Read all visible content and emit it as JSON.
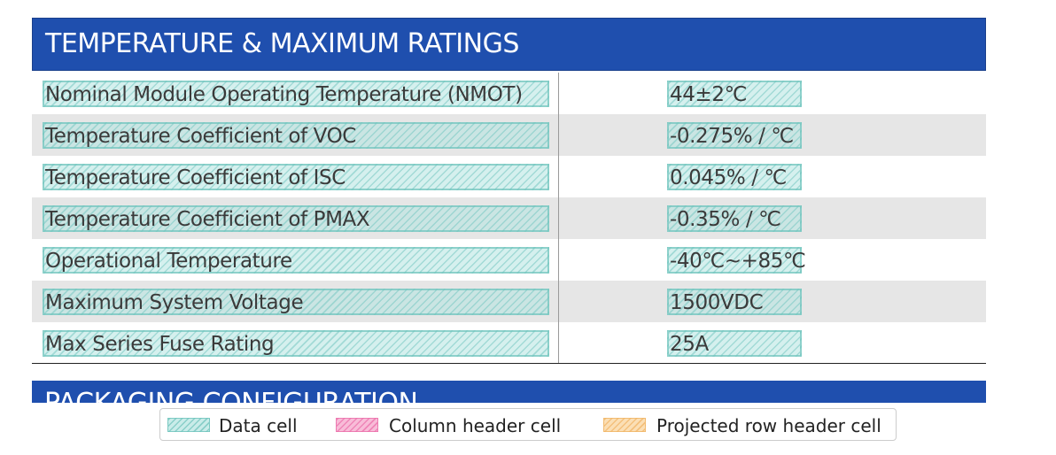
{
  "section": {
    "title": "TEMPERATURE & MAXIMUM RATINGS",
    "header_color": "#1f4fae"
  },
  "rows": [
    {
      "label": "Nominal Module Operating Temperature (NMOT)",
      "value": "44±2℃"
    },
    {
      "label": "Temperature Coefficient of VOC",
      "value": "-0.275% / ℃"
    },
    {
      "label": "Temperature Coefficient of ISC",
      "value": "0.045% / ℃"
    },
    {
      "label": "Temperature Coefficient of PMAX",
      "value": "-0.35% / ℃"
    },
    {
      "label": "Operational Temperature",
      "value": "-40℃~+85℃"
    },
    {
      "label": "Maximum System Voltage",
      "value": "1500VDC"
    },
    {
      "label": "Max Series Fuse Rating",
      "value": "25A"
    }
  ],
  "next_section": {
    "title": "PACKAGING CONFIGURATION"
  },
  "legend": {
    "items": [
      {
        "label": "Data cell",
        "color": "#b2e4e0"
      },
      {
        "label": "Column header cell",
        "color": "#f5a0c8"
      },
      {
        "label": "Projected row header cell",
        "color": "#fad296"
      }
    ]
  }
}
